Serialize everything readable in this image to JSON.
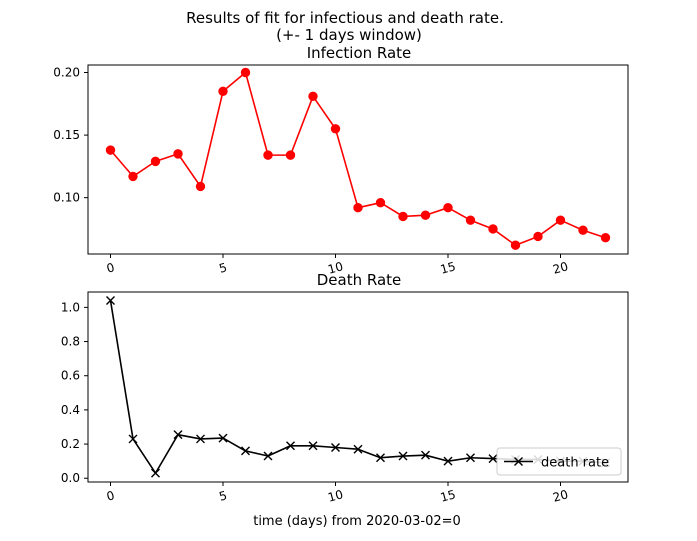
{
  "figure": {
    "suptitle_line1": "Results of fit for infectious and death rate.",
    "suptitle_line2": "(+- 1 days window)",
    "xlabel": "time (days) from 2020-03-02=0"
  },
  "chart_data": [
    {
      "type": "line",
      "title": "Infection Rate",
      "xlabel": "",
      "ylabel": "",
      "x": [
        0,
        1,
        2,
        3,
        4,
        5,
        6,
        7,
        8,
        9,
        10,
        11,
        12,
        13,
        14,
        15,
        16,
        17,
        18,
        19,
        20,
        21,
        22
      ],
      "series": [
        {
          "values": [
            0.138,
            0.117,
            0.129,
            0.135,
            0.109,
            0.185,
            0.2,
            0.134,
            0.134,
            0.181,
            0.155,
            0.092,
            0.096,
            0.085,
            0.086,
            0.092,
            0.082,
            0.075,
            0.062,
            0.069,
            0.082,
            0.074,
            0.068
          ],
          "color": "#ff0000",
          "marker": "circle"
        }
      ],
      "xlim": [
        -1,
        23
      ],
      "ylim": [
        0.055,
        0.206
      ],
      "xticks": [
        0,
        5,
        10,
        15,
        20
      ],
      "xtick_labels": [
        "0",
        "5",
        "10",
        "15",
        "20"
      ],
      "yticks": [
        0.1,
        0.15,
        0.2
      ],
      "ytick_labels": [
        "0.10",
        "0.15",
        "0.20"
      ],
      "grid": false
    },
    {
      "type": "line",
      "title": "Death Rate",
      "xlabel": "",
      "ylabel": "",
      "x": [
        0,
        1,
        2,
        3,
        4,
        5,
        6,
        7,
        8,
        9,
        10,
        11,
        12,
        13,
        14,
        15,
        16,
        17,
        18,
        19,
        20,
        21,
        22
      ],
      "series": [
        {
          "name": "death rate",
          "values": [
            1.04,
            0.23,
            0.03,
            0.255,
            0.23,
            0.235,
            0.16,
            0.13,
            0.19,
            0.19,
            0.18,
            0.17,
            0.12,
            0.13,
            0.135,
            0.1,
            0.12,
            0.115,
            0.11,
            0.11,
            0.1,
            0.1,
            0.09
          ],
          "color": "#000000",
          "marker": "x"
        }
      ],
      "xlim": [
        -1,
        23
      ],
      "ylim": [
        -0.022,
        1.09
      ],
      "xticks": [
        0,
        5,
        10,
        15,
        20
      ],
      "xtick_labels": [
        "0",
        "5",
        "10",
        "15",
        "20"
      ],
      "yticks": [
        0.0,
        0.2,
        0.4,
        0.6,
        0.8,
        1.0
      ],
      "ytick_labels": [
        "0.0",
        "0.2",
        "0.4",
        "0.6",
        "0.8",
        "1.0"
      ],
      "grid": false,
      "legend": "lower-right"
    }
  ]
}
